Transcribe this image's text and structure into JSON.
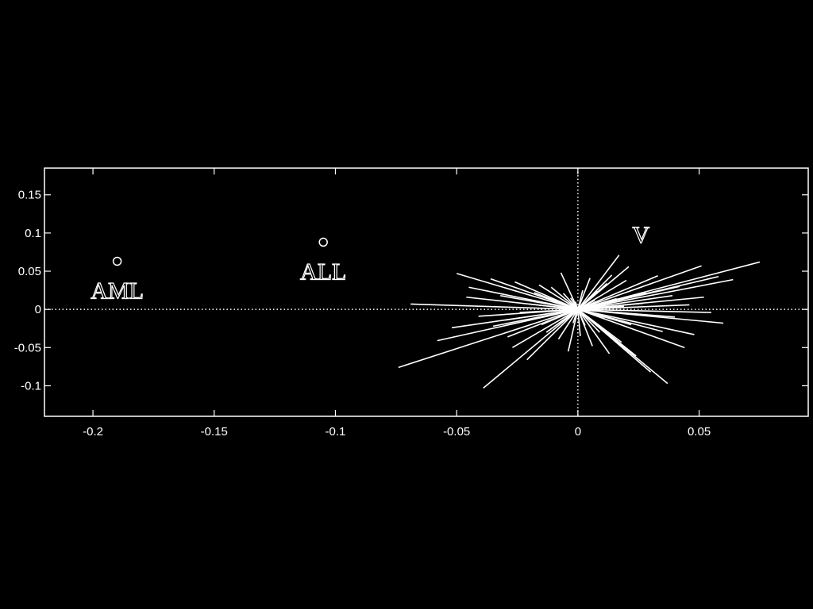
{
  "colors": {
    "background": "#000000",
    "foreground": "#ffffff"
  },
  "chart_data": {
    "type": "scatter",
    "title": "",
    "xlabel": "",
    "ylabel": "",
    "xlim": [
      -0.22,
      0.095
    ],
    "ylim": [
      -0.14,
      0.185
    ],
    "grid": false,
    "x_ticks": [
      -0.2,
      -0.15,
      -0.1,
      -0.05,
      0,
      0.05
    ],
    "x_tick_labels": [
      "-0.2",
      "-0.15",
      "-0.1",
      "-0.05",
      "0",
      "0.05"
    ],
    "y_ticks": [
      0.15,
      0.1,
      0.05,
      0,
      -0.05,
      -0.1
    ],
    "y_tick_labels": [
      "0.15",
      "0.1",
      "0.05",
      "0",
      "-0.05",
      "-0.1"
    ],
    "reference_lines": {
      "x": 0,
      "y": 0,
      "style": "dotted"
    },
    "points": [
      {
        "label": "AML",
        "x": -0.19,
        "y": 0.063
      },
      {
        "label": "ALL",
        "x": -0.105,
        "y": 0.088
      }
    ],
    "annotations": [
      {
        "text": "V",
        "x": 0.026,
        "y": 0.098
      }
    ],
    "vectors": [
      [
        -0.069,
        0.007
      ],
      [
        -0.074,
        -0.076
      ],
      [
        -0.039,
        -0.103
      ],
      [
        -0.05,
        0.047
      ],
      [
        -0.045,
        0.029
      ],
      [
        -0.052,
        -0.024
      ],
      [
        -0.058,
        -0.041
      ],
      [
        -0.036,
        0.04
      ],
      [
        -0.032,
        0.018
      ],
      [
        -0.03,
        -0.014
      ],
      [
        -0.041,
        -0.009
      ],
      [
        -0.027,
        -0.05
      ],
      [
        -0.021,
        -0.066
      ],
      [
        -0.016,
        0.032
      ],
      [
        -0.011,
        0.029
      ],
      [
        -0.008,
        -0.039
      ],
      [
        -0.004,
        -0.055
      ],
      [
        -0.01,
        0.011
      ],
      [
        -0.015,
        -0.02
      ],
      [
        -0.02,
        0.007
      ],
      [
        -0.024,
        -0.004
      ],
      [
        -0.006,
        0.021
      ],
      [
        -0.003,
        0.015
      ],
      [
        -0.002,
        -0.018
      ],
      [
        0.002,
        0.025
      ],
      [
        0.005,
        0.041
      ],
      [
        0.008,
        0.024
      ],
      [
        0.012,
        0.034
      ],
      [
        0.017,
        0.071
      ],
      [
        0.02,
        0.038
      ],
      [
        0.028,
        0.022
      ],
      [
        0.033,
        0.044
      ],
      [
        0.039,
        0.018
      ],
      [
        0.051,
        0.057
      ],
      [
        0.058,
        0.043
      ],
      [
        0.075,
        0.062
      ],
      [
        0.064,
        0.039
      ],
      [
        0.046,
        0.006
      ],
      [
        0.055,
        -0.004
      ],
      [
        0.06,
        -0.018
      ],
      [
        0.048,
        -0.033
      ],
      [
        0.044,
        -0.05
      ],
      [
        0.037,
        -0.097
      ],
      [
        0.03,
        -0.082
      ],
      [
        0.024,
        -0.061
      ],
      [
        0.018,
        -0.043
      ],
      [
        0.013,
        -0.058
      ],
      [
        0.009,
        -0.03
      ],
      [
        0.006,
        -0.048
      ],
      [
        0.003,
        -0.021
      ],
      [
        0.011,
        -0.012
      ],
      [
        0.016,
        0.014
      ],
      [
        0.022,
        -0.02
      ],
      [
        0.035,
        -0.029
      ],
      [
        0.04,
        -0.01
      ],
      [
        0.052,
        0.016
      ],
      [
        0.027,
        0.008
      ],
      [
        0.019,
        0.004
      ],
      [
        0.014,
        0.045
      ],
      [
        0.001,
        -0.035
      ],
      [
        -0.013,
        -0.03
      ],
      [
        -0.018,
        0.022
      ],
      [
        -0.026,
        0.036
      ],
      [
        -0.035,
        -0.022
      ],
      [
        -0.046,
        0.016
      ],
      [
        -0.007,
        0.048
      ],
      [
        0.007,
        0.012
      ],
      [
        -0.001,
        0.01
      ],
      [
        0.031,
        -0.008
      ],
      [
        0.042,
        0.03
      ],
      [
        -0.029,
        -0.036
      ],
      [
        0.021,
        0.056
      ]
    ]
  }
}
